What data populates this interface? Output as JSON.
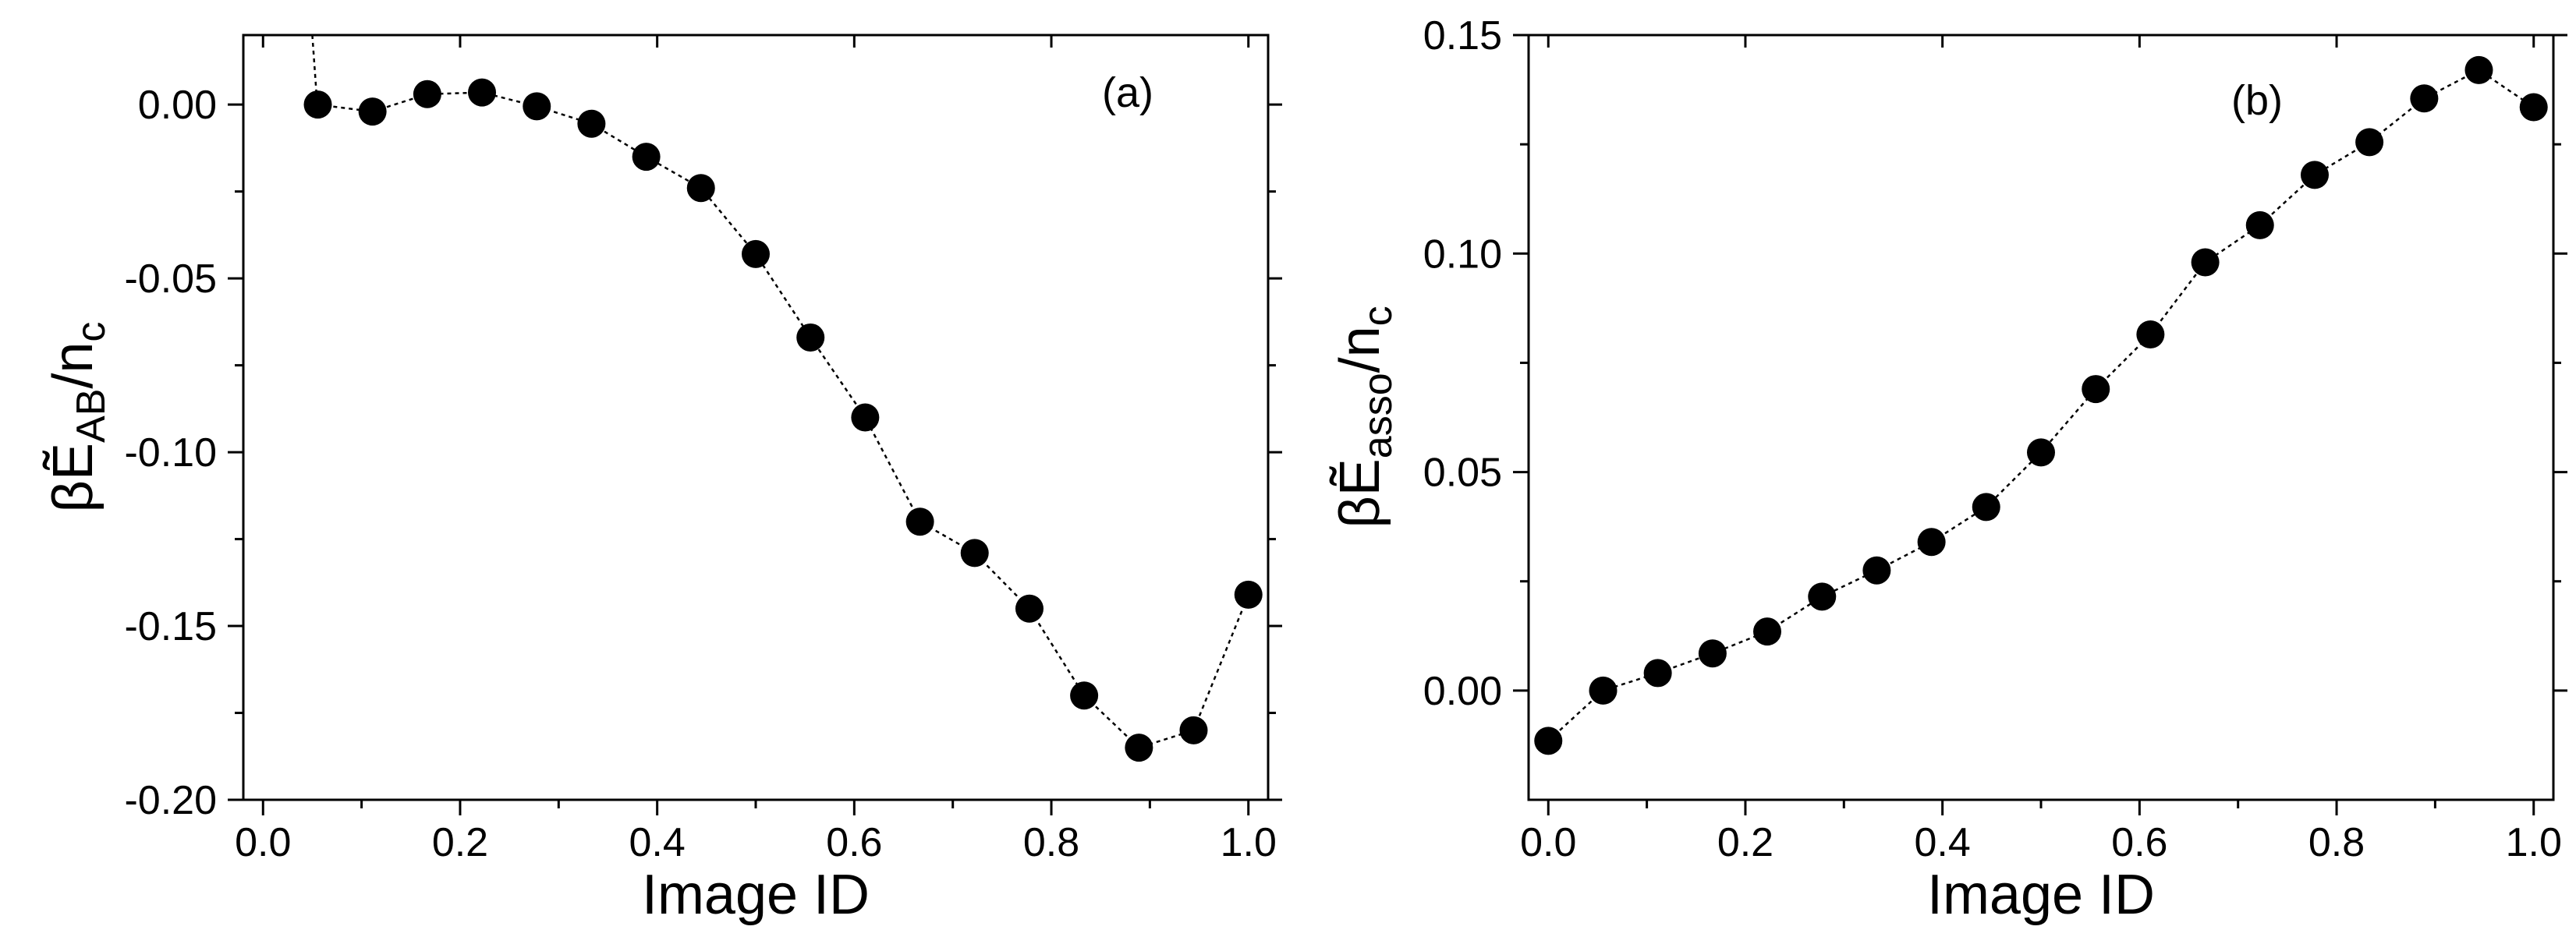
{
  "figure": {
    "panels": [
      "a",
      "b"
    ]
  },
  "chart_data": [
    {
      "type": "scatter",
      "panel_label": "(a)",
      "title": "",
      "xlabel": "Image ID",
      "ylabel": {
        "prefix": "β",
        "symbol": "Ẽ",
        "subscript": "AB",
        "suffix": "/n",
        "suffix_sub": "c"
      },
      "xlim": [
        -0.02,
        1.02
      ],
      "ylim": [
        -0.2,
        0.02
      ],
      "xticks": [
        0.0,
        0.2,
        0.4,
        0.6,
        0.8,
        1.0
      ],
      "xtick_labels": [
        "0.0",
        "0.2",
        "0.4",
        "0.6",
        "0.8",
        "1.0"
      ],
      "yticks": [
        0.0,
        -0.05,
        -0.1,
        -0.15,
        -0.2
      ],
      "ytick_labels": [
        "0.00",
        "-0.05",
        "-0.10",
        "-0.15",
        "-0.20"
      ],
      "line_style": "dotted",
      "marker": "filled-circle",
      "color": "#000000",
      "leading_segment": {
        "x": [
          0.05,
          0.055
        ],
        "y": [
          0.025,
          0.0
        ]
      },
      "series": [
        {
          "name": "E_AB",
          "x": [
            0.0556,
            0.1111,
            0.1667,
            0.2222,
            0.2778,
            0.3333,
            0.3889,
            0.4444,
            0.5,
            0.5556,
            0.6111,
            0.6667,
            0.7222,
            0.7778,
            0.8333,
            0.8889,
            0.9444,
            1.0
          ],
          "y": [
            0.0,
            -0.002,
            0.003,
            0.0035,
            -0.0005,
            -0.0055,
            -0.015,
            -0.024,
            -0.043,
            -0.067,
            -0.09,
            -0.12,
            -0.129,
            -0.145,
            -0.17,
            -0.185,
            -0.18,
            -0.141
          ]
        }
      ]
    },
    {
      "type": "scatter",
      "panel_label": "(b)",
      "title": "",
      "xlabel": "Image ID",
      "ylabel": {
        "prefix": "β",
        "symbol": "Ẽ",
        "subscript": "asso",
        "suffix": "/n",
        "suffix_sub": "c"
      },
      "xlim": [
        -0.02,
        1.02
      ],
      "ylim": [
        -0.025,
        0.15
      ],
      "xticks": [
        0.0,
        0.2,
        0.4,
        0.6,
        0.8,
        1.0
      ],
      "xtick_labels": [
        "0.0",
        "0.2",
        "0.4",
        "0.6",
        "0.8",
        "1.0"
      ],
      "yticks": [
        0.0,
        0.05,
        0.1,
        0.15
      ],
      "ytick_labels": [
        "0.00",
        "0.05",
        "0.10",
        "0.15"
      ],
      "line_style": "dotted",
      "marker": "filled-circle",
      "color": "#000000",
      "series": [
        {
          "name": "E_asso",
          "x": [
            0.0,
            0.0556,
            0.1111,
            0.1667,
            0.2222,
            0.2778,
            0.3333,
            0.3889,
            0.4444,
            0.5,
            0.5556,
            0.6111,
            0.6667,
            0.7222,
            0.7778,
            0.8333,
            0.8889,
            0.9444,
            1.0
          ],
          "y": [
            -0.0115,
            0.0,
            0.004,
            0.0085,
            0.0135,
            0.0215,
            0.0275,
            0.034,
            0.042,
            0.0545,
            0.069,
            0.0815,
            0.098,
            0.1065,
            0.118,
            0.1255,
            0.1355,
            0.142,
            0.1335
          ]
        }
      ]
    }
  ]
}
